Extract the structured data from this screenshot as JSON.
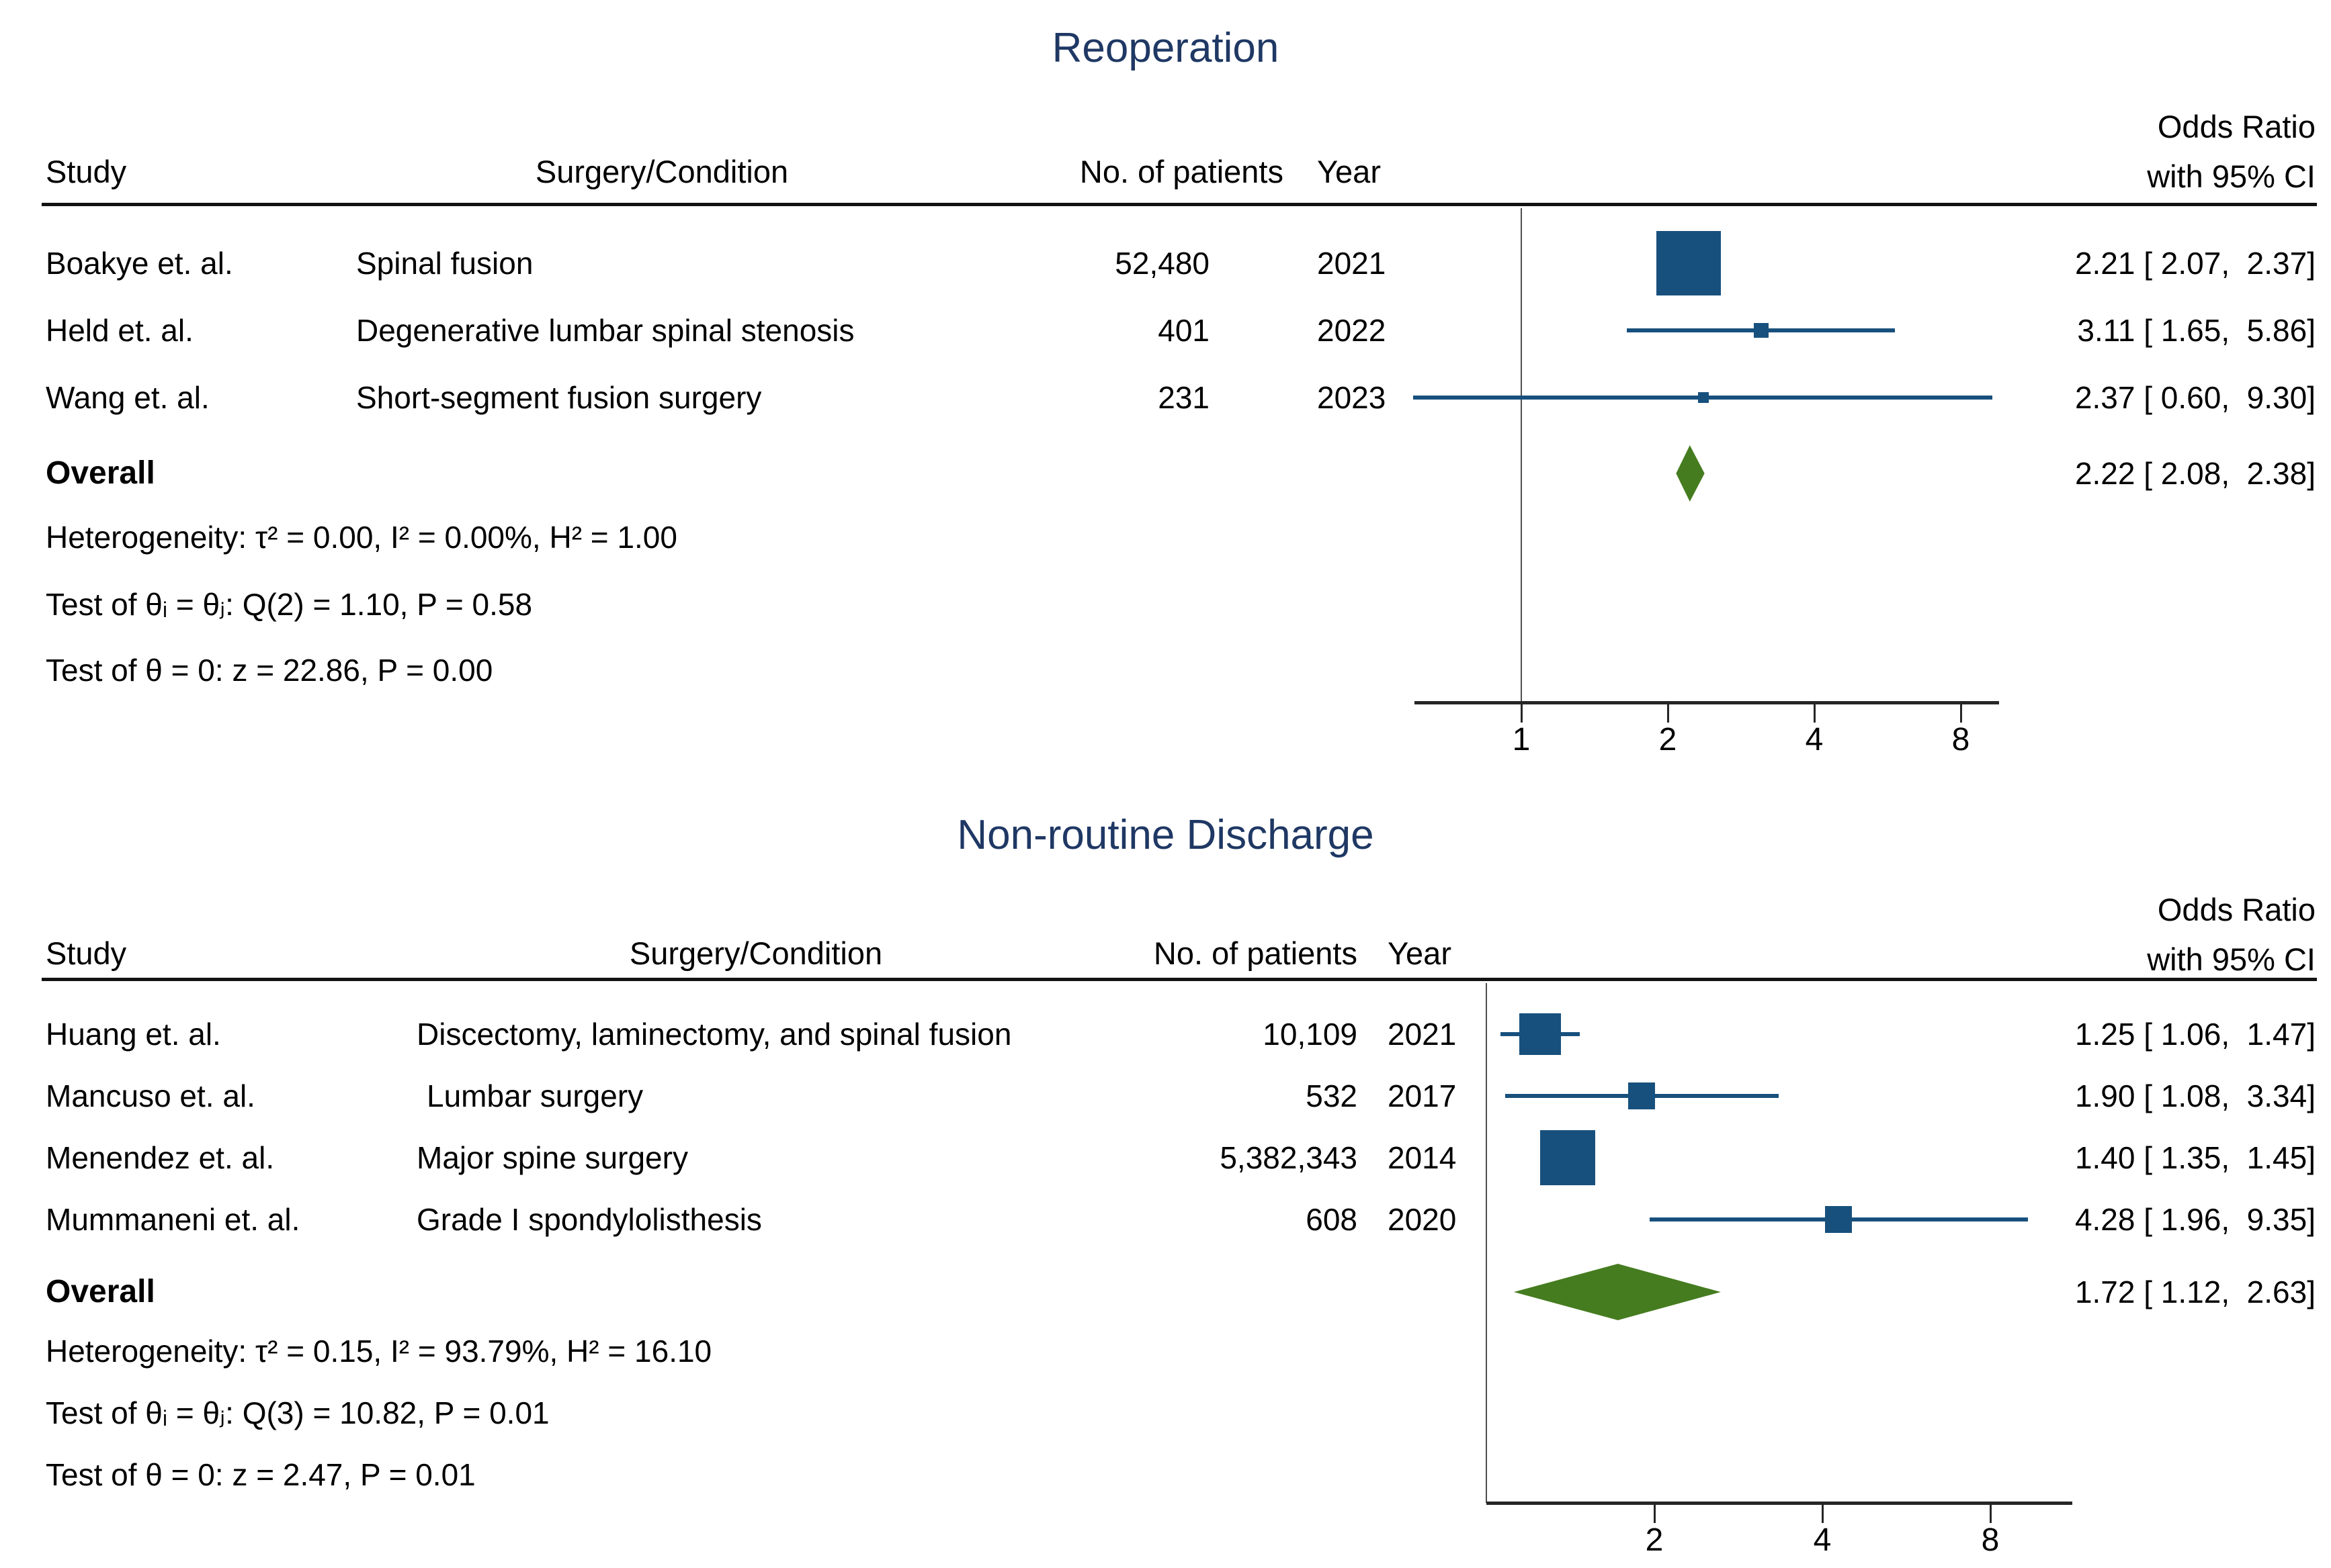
{
  "colors": {
    "title_navy": "#1f3864",
    "marker_blue": "#17507d",
    "diamond_green": "#457c1f",
    "axis_black": "#262626",
    "text_black": "#000000"
  },
  "chart_data": [
    {
      "type": "forest",
      "title": "Reoperation",
      "columns": {
        "study": "Study",
        "condition": "Surgery/Condition",
        "patients": "No. of patients",
        "year": "Year",
        "effect_line1": "Odds Ratio",
        "effect_line2": "with 95% CI"
      },
      "studies": [
        {
          "study": "Boakye et. al.",
          "condition": "Spinal fusion",
          "patients": "52,480",
          "year": "2021",
          "or": 2.21,
          "ci": [
            2.07,
            2.37
          ],
          "ci_label": "2.21 [ 2.07,  2.37]",
          "marker_size": 96
        },
        {
          "study": "Held et. al.",
          "condition": "Degenerative lumbar spinal stenosis",
          "patients": "401",
          "year": "2022",
          "or": 3.11,
          "ci": [
            1.65,
            5.86
          ],
          "ci_label": "3.11 [ 1.65,  5.86]",
          "marker_size": 22
        },
        {
          "study": "Wang et. al.",
          "condition": "Short-segment fusion surgery",
          "patients": "231",
          "year": "2023",
          "or": 2.37,
          "ci": [
            0.6,
            9.3
          ],
          "ci_label": "2.37 [ 0.60,  9.30]",
          "marker_size": 16
        }
      ],
      "overall": {
        "label": "Overall",
        "or": 2.22,
        "ci": [
          2.08,
          2.38
        ],
        "ci_label": "2.22 [ 2.08,  2.38]"
      },
      "stats": [
        "Heterogeneity: τ² = 0.00, I² = 0.00%, H² = 1.00",
        "Test of θᵢ = θⱼ: Q(2) = 1.10, P = 0.58",
        "Test of θ = 0: z = 22.86, P = 0.00"
      ],
      "axis": {
        "scale": "log2",
        "ticks": [
          1,
          2,
          4,
          8
        ],
        "xlim": [
          0.6,
          9.3
        ]
      }
    },
    {
      "type": "forest",
      "title": "Non-routine Discharge",
      "columns": {
        "study": "Study",
        "condition": "Surgery/Condition",
        "patients": "No. of patients",
        "year": "Year",
        "effect_line1": "Odds Ratio",
        "effect_line2": "with 95% CI"
      },
      "studies": [
        {
          "study": "Huang et. al.",
          "condition": "Discectomy, laminectomy, and spinal fusion",
          "patients": "10,109",
          "year": "2021",
          "or": 1.25,
          "ci": [
            1.06,
            1.47
          ],
          "ci_label": "1.25 [ 1.06,  1.47]",
          "marker_size": 62
        },
        {
          "study": "Mancuso et. al.",
          "condition": "Lumbar surgery",
          "patients": "532",
          "year": "2017",
          "or": 1.9,
          "ci": [
            1.08,
            3.34
          ],
          "ci_label": "1.90 [ 1.08,  3.34]",
          "marker_size": 40
        },
        {
          "study": "Menendez et. al.",
          "condition": "Major spine surgery",
          "patients": "5,382,343",
          "year": "2014",
          "or": 1.4,
          "ci": [
            1.35,
            1.45
          ],
          "ci_label": "1.40 [ 1.35,  1.45]",
          "marker_size": 82
        },
        {
          "study": "Mummaneni et. al.",
          "condition": "Grade I spondylolisthesis",
          "patients": "608",
          "year": "2020",
          "or": 4.28,
          "ci": [
            1.96,
            9.35
          ],
          "ci_label": "4.28 [ 1.96,  9.35]",
          "marker_size": 40
        }
      ],
      "overall": {
        "label": "Overall",
        "or": 1.72,
        "ci": [
          1.12,
          2.63
        ],
        "ci_label": "1.72 [ 1.12,  2.63]"
      },
      "stats": [
        "Heterogeneity: τ² = 0.15, I² = 93.79%, H² = 16.10",
        "Test of θᵢ = θⱼ: Q(3) = 10.82, P = 0.01",
        "Test of θ = 0: z = 2.47, P = 0.01"
      ],
      "axis": {
        "scale": "log2",
        "ticks": [
          2,
          4,
          8
        ],
        "xlim": [
          1.06,
          9.35
        ]
      }
    }
  ]
}
